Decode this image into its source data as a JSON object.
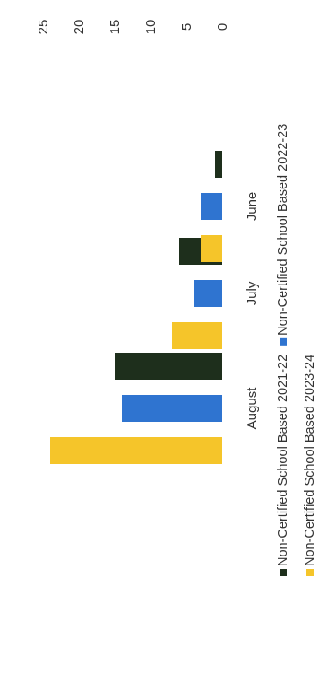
{
  "chart_data": {
    "type": "bar",
    "orientation": "vertical-bars-rotated-page",
    "title": "",
    "xlabel": "",
    "ylabel": "",
    "ylim": [
      0,
      25
    ],
    "yticks": [
      "0",
      "5",
      "10",
      "15",
      "20",
      "25"
    ],
    "grid": false,
    "legend_placement": "bottom",
    "categories": [
      "June",
      "July",
      "August"
    ],
    "series": [
      {
        "name": "Non-Certified School Based 2021-22",
        "values": [
          1,
          6,
          15
        ],
        "color": "#1e2f1c"
      },
      {
        "name": "Non-Certified School Based 2022-23",
        "values": [
          3,
          4,
          14
        ],
        "color": "#2f74d0"
      },
      {
        "name": "Non-Certified School Based 2023-24",
        "values": [
          3,
          7,
          24
        ],
        "color": "#f5c52a"
      }
    ]
  }
}
